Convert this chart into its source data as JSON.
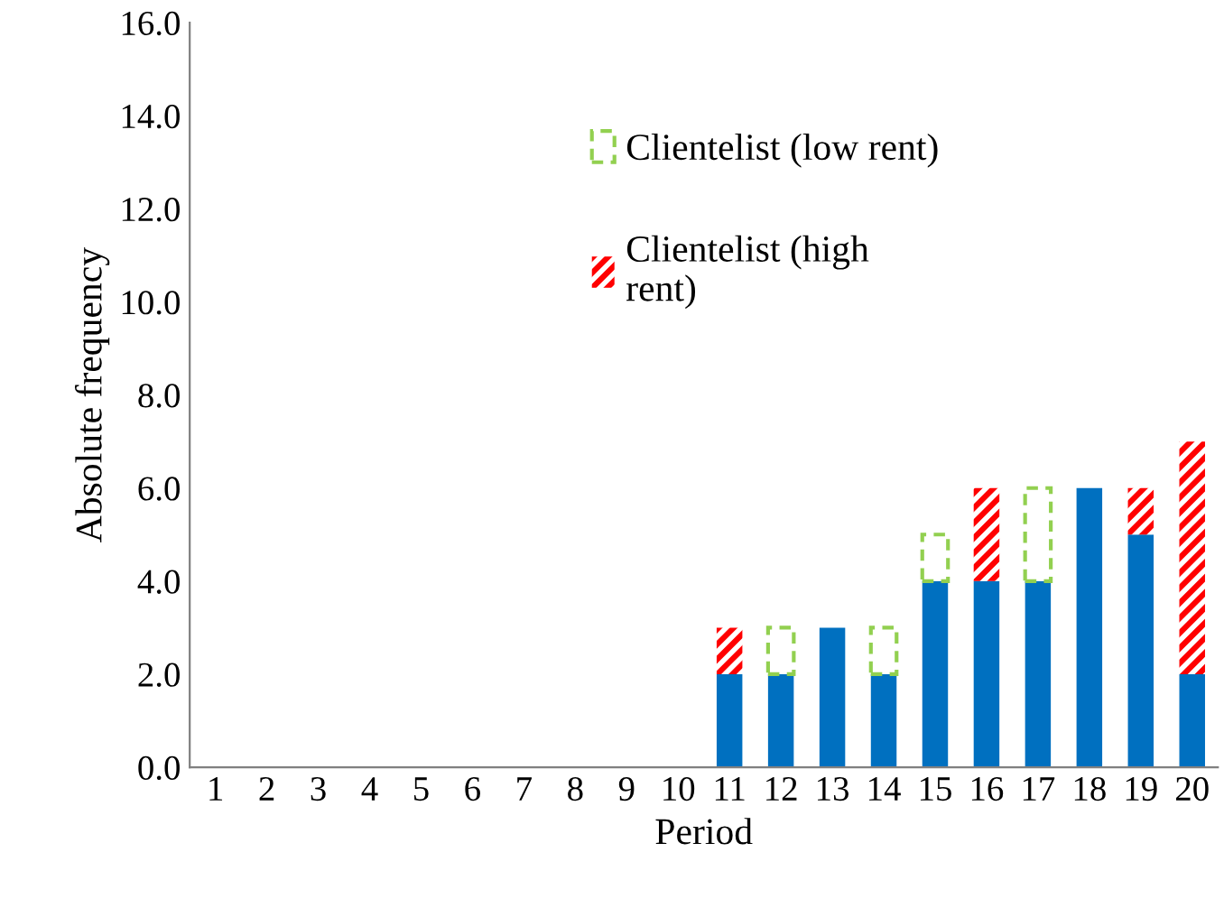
{
  "chart_data": {
    "type": "bar",
    "stacked": true,
    "xlabel": "Period",
    "ylabel": "Absolute frequency",
    "categories": [
      "1",
      "2",
      "3",
      "4",
      "5",
      "6",
      "7",
      "8",
      "9",
      "10",
      "11",
      "12",
      "13",
      "14",
      "15",
      "16",
      "17",
      "18",
      "19",
      "20"
    ],
    "series": [
      {
        "color": "#0070c0",
        "values": [
          0,
          0,
          0,
          0,
          0,
          0,
          0,
          0,
          0,
          0,
          2,
          2,
          3,
          2,
          4,
          4,
          4,
          6,
          5,
          2
        ]
      },
      {
        "name": "Clientelist (low rent)",
        "color": "#92d050",
        "line_style": "dashed",
        "values": [
          0,
          0,
          0,
          0,
          0,
          0,
          0,
          0,
          0,
          0,
          0,
          1,
          0,
          1,
          1,
          0,
          2,
          0,
          0,
          0
        ]
      },
      {
        "name": "Clientelist (high\nrent)",
        "color": "#ff0000",
        "values": [
          0,
          0,
          0,
          0,
          0,
          0,
          0,
          0,
          0,
          0,
          1,
          0,
          0,
          0,
          0,
          2,
          0,
          0,
          1,
          5
        ]
      }
    ],
    "ylim": [
      0,
      16
    ],
    "yticks": [
      {
        "value": 0,
        "label": "0.0"
      },
      {
        "value": 2,
        "label": "2.0"
      },
      {
        "value": 4,
        "label": "4.0"
      },
      {
        "value": 6,
        "label": "6.0"
      },
      {
        "value": 8,
        "label": "8.0"
      },
      {
        "value": 10,
        "label": "10.0"
      },
      {
        "value": 12,
        "label": "12.0"
      },
      {
        "value": 14,
        "label": "14.0"
      },
      {
        "value": 16,
        "label": "16.0"
      }
    ],
    "grid": false,
    "legend": "top"
  }
}
